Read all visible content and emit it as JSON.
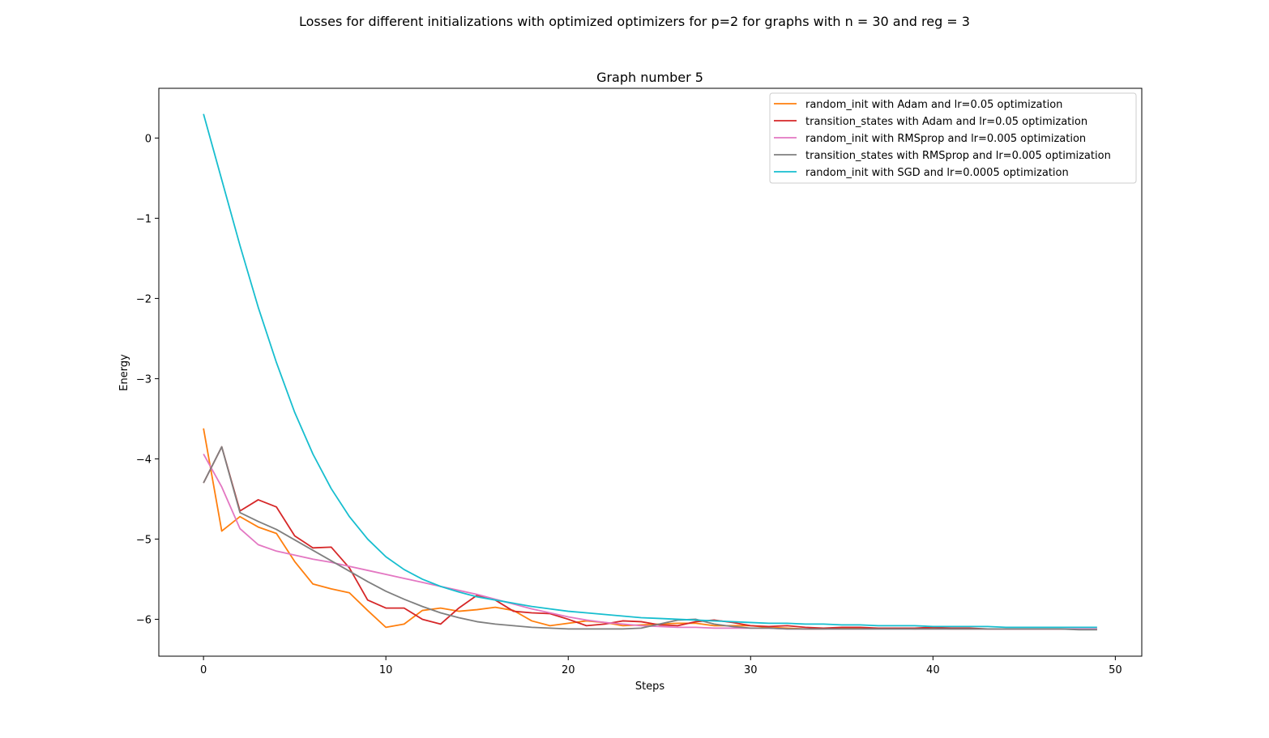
{
  "figure": {
    "suptitle": "Losses for different initializations with optimized optimizers for p=2 for graphs with n = 30 and reg = 3"
  },
  "chart_data": {
    "type": "line",
    "title": "Graph number 5",
    "xlabel": "Steps",
    "ylabel": "Energy",
    "xlim": [
      -2.45,
      51.45
    ],
    "ylim": [
      -6.46,
      0.62
    ],
    "xticks": [
      0,
      10,
      20,
      30,
      40,
      50
    ],
    "yticks": [
      0,
      -1,
      -2,
      -3,
      -4,
      -5,
      -6
    ],
    "xtick_labels": [
      "0",
      "10",
      "20",
      "30",
      "40",
      "50"
    ],
    "ytick_labels": [
      "0",
      "−1",
      "−2",
      "−3",
      "−4",
      "−5",
      "−6"
    ],
    "grid": false,
    "legend_position": "top-right",
    "x": [
      0,
      1,
      2,
      3,
      4,
      5,
      6,
      7,
      8,
      9,
      10,
      11,
      12,
      13,
      14,
      15,
      16,
      17,
      18,
      19,
      20,
      21,
      22,
      23,
      24,
      25,
      26,
      27,
      28,
      29,
      30,
      31,
      32,
      33,
      34,
      35,
      36,
      37,
      38,
      39,
      40,
      41,
      42,
      43,
      44,
      45,
      46,
      47,
      48,
      49
    ],
    "series": [
      {
        "name": "random_init with Adam and lr=0.05 optimization",
        "color": "#ff7f0e",
        "values": [
          -3.62,
          -4.9,
          -4.72,
          -4.85,
          -4.93,
          -5.28,
          -5.56,
          -5.62,
          -5.67,
          -5.89,
          -6.1,
          -6.06,
          -5.89,
          -5.86,
          -5.9,
          -5.88,
          -5.85,
          -5.89,
          -6.02,
          -6.08,
          -6.05,
          -6.02,
          -6.04,
          -6.08,
          -6.07,
          -6.06,
          -6.05,
          -6.05,
          -6.08,
          -6.08,
          -6.08,
          -6.1,
          -6.11,
          -6.12,
          -6.12,
          -6.11,
          -6.11,
          -6.11,
          -6.11,
          -6.12,
          -6.11,
          -6.12,
          -6.12,
          -6.12,
          -6.12,
          -6.12,
          -6.12,
          -6.12,
          -6.12,
          -6.12
        ]
      },
      {
        "name": "transition_states with Adam and lr=0.05 optimization",
        "color": "#d62728",
        "values": [
          -4.3,
          -3.85,
          -4.65,
          -4.51,
          -4.6,
          -4.96,
          -5.11,
          -5.1,
          -5.36,
          -5.76,
          -5.86,
          -5.86,
          -6.0,
          -6.06,
          -5.86,
          -5.7,
          -5.76,
          -5.9,
          -5.92,
          -5.93,
          -6.0,
          -6.08,
          -6.06,
          -6.02,
          -6.03,
          -6.07,
          -6.08,
          -6.03,
          -6.01,
          -6.04,
          -6.08,
          -6.09,
          -6.08,
          -6.1,
          -6.11,
          -6.1,
          -6.1,
          -6.11,
          -6.11,
          -6.11,
          -6.1,
          -6.11,
          -6.11,
          -6.12,
          -6.12,
          -6.12,
          -6.12,
          -6.12,
          -6.12,
          -6.12
        ]
      },
      {
        "name": "random_init with RMSprop and lr=0.005 optimization",
        "color": "#e377c2",
        "values": [
          -3.94,
          -4.35,
          -4.87,
          -5.07,
          -5.15,
          -5.2,
          -5.25,
          -5.29,
          -5.34,
          -5.39,
          -5.44,
          -5.49,
          -5.54,
          -5.59,
          -5.64,
          -5.69,
          -5.75,
          -5.81,
          -5.87,
          -5.92,
          -5.97,
          -6.01,
          -6.04,
          -6.06,
          -6.08,
          -6.09,
          -6.1,
          -6.1,
          -6.11,
          -6.11,
          -6.11,
          -6.11,
          -6.12,
          -6.12,
          -6.12,
          -6.12,
          -6.12,
          -6.12,
          -6.12,
          -6.12,
          -6.12,
          -6.12,
          -6.12,
          -6.12,
          -6.12,
          -6.12,
          -6.12,
          -6.12,
          -6.12,
          -6.12
        ]
      },
      {
        "name": "transition_states with RMSprop and lr=0.005 optimization",
        "color": "#7f7f7f",
        "values": [
          -4.3,
          -3.85,
          -4.67,
          -4.78,
          -4.88,
          -5.01,
          -5.14,
          -5.27,
          -5.4,
          -5.53,
          -5.65,
          -5.75,
          -5.84,
          -5.92,
          -5.98,
          -6.03,
          -6.06,
          -6.08,
          -6.1,
          -6.11,
          -6.12,
          -6.12,
          -6.12,
          -6.12,
          -6.11,
          -6.06,
          -6.01,
          -6.0,
          -6.06,
          -6.09,
          -6.11,
          -6.11,
          -6.12,
          -6.12,
          -6.12,
          -6.12,
          -6.12,
          -6.12,
          -6.12,
          -6.12,
          -6.12,
          -6.12,
          -6.12,
          -6.12,
          -6.12,
          -6.12,
          -6.12,
          -6.12,
          -6.13,
          -6.13
        ]
      },
      {
        "name": "random_init with SGD and lr=0.0005 optimization",
        "color": "#17becf",
        "values": [
          0.3,
          -0.52,
          -1.34,
          -2.11,
          -2.8,
          -3.42,
          -3.94,
          -4.37,
          -4.72,
          -5.0,
          -5.22,
          -5.38,
          -5.5,
          -5.59,
          -5.66,
          -5.72,
          -5.76,
          -5.8,
          -5.84,
          -5.87,
          -5.9,
          -5.92,
          -5.94,
          -5.96,
          -5.98,
          -5.99,
          -6.0,
          -6.01,
          -6.02,
          -6.03,
          -6.04,
          -6.05,
          -6.05,
          -6.06,
          -6.06,
          -6.07,
          -6.07,
          -6.08,
          -6.08,
          -6.08,
          -6.09,
          -6.09,
          -6.09,
          -6.09,
          -6.1,
          -6.1,
          -6.1,
          -6.1,
          -6.1,
          -6.1
        ]
      }
    ]
  }
}
